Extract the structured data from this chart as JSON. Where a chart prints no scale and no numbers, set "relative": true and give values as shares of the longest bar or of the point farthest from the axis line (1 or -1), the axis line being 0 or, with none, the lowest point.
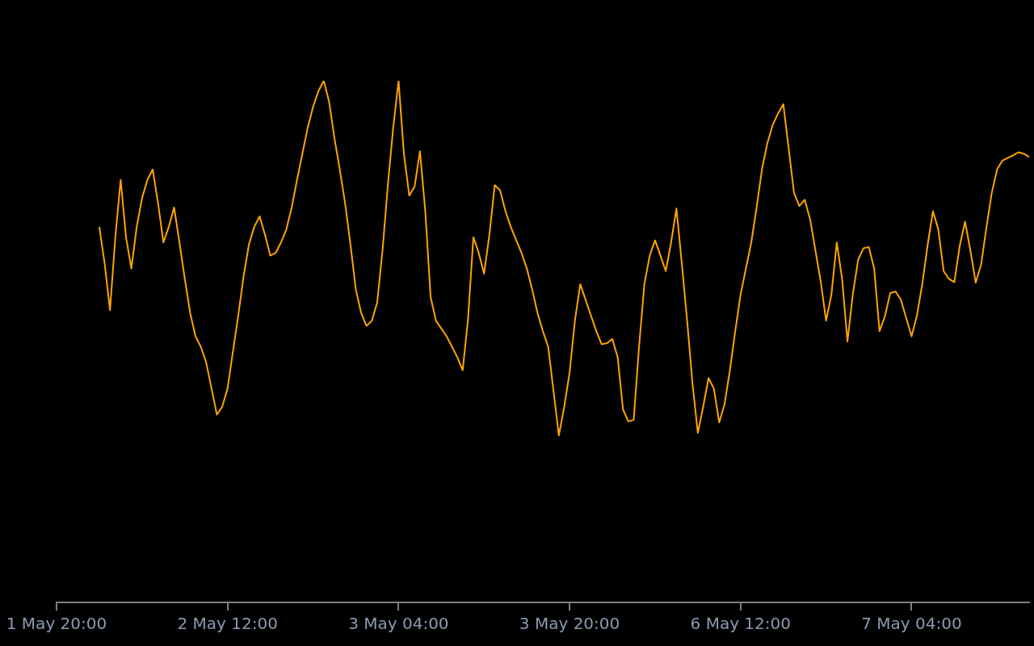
{
  "chart_data": {
    "type": "line",
    "relative": true,
    "marker": "none",
    "categories": [
      "1 May 20:00",
      null,
      null,
      null,
      null,
      null,
      null,
      null,
      null,
      null,
      null,
      null,
      null,
      null,
      null,
      null,
      null,
      null,
      null,
      null,
      null,
      null,
      null,
      null,
      null,
      null,
      null,
      null,
      null,
      null,
      null,
      null,
      "2 May 12:00",
      null,
      null,
      null,
      null,
      null,
      null,
      null,
      null,
      null,
      null,
      null,
      null,
      null,
      null,
      null,
      null,
      null,
      null,
      null,
      null,
      null,
      null,
      null,
      null,
      null,
      null,
      null,
      null,
      null,
      null,
      null,
      "3 May 04:00",
      null,
      null,
      null,
      null,
      null,
      null,
      null,
      null,
      null,
      null,
      null,
      null,
      null,
      null,
      null,
      null,
      null,
      null,
      null,
      null,
      null,
      null,
      null,
      null,
      null,
      null,
      null,
      null,
      null,
      null,
      null,
      "3 May 20:00",
      null,
      null,
      null,
      null,
      null,
      null,
      null,
      null,
      null,
      null,
      null,
      null,
      null,
      null,
      null,
      null,
      null,
      null,
      null,
      null,
      null,
      null,
      null,
      null,
      null,
      null,
      null,
      null,
      null,
      null,
      null,
      "6 May 12:00",
      null,
      null,
      null,
      null,
      null,
      null,
      null,
      null,
      null,
      null,
      null,
      null,
      null,
      null,
      null,
      null,
      null,
      null,
      null,
      null,
      null,
      null,
      null,
      null,
      null,
      null,
      null,
      null,
      null,
      null,
      null,
      "7 May 04:00",
      null,
      null,
      null,
      null,
      null,
      null,
      null,
      null,
      null,
      null,
      null,
      null,
      null,
      null,
      null,
      null,
      null,
      null,
      null,
      null,
      null,
      null
    ],
    "series": [
      {
        "color": "#ffa500",
        "values": [
          null,
          null,
          null,
          null,
          null,
          null,
          null,
          null,
          0.72,
          0.65,
          0.56,
          0.7,
          0.81,
          0.7,
          0.64,
          0.72,
          0.775,
          0.81,
          0.83,
          0.765,
          0.69,
          0.72,
          0.757,
          0.69,
          0.62,
          0.555,
          0.51,
          0.49,
          0.46,
          0.41,
          0.36,
          0.375,
          0.41,
          0.48,
          0.55,
          0.625,
          0.686,
          0.72,
          0.74,
          0.705,
          0.665,
          0.67,
          0.69,
          0.715,
          0.757,
          0.81,
          0.86,
          0.91,
          0.95,
          0.98,
          1,
          0.96,
          0.89,
          0.83,
          0.765,
          0.686,
          0.6,
          0.555,
          0.53,
          0.54,
          0.575,
          0.675,
          0.8,
          0.91,
          1,
          0.86,
          0.78,
          0.797,
          0.865,
          0.75,
          0.585,
          0.54,
          0.525,
          0.51,
          0.49,
          0.47,
          0.445,
          0.543,
          0.7,
          0.67,
          0.63,
          0.705,
          0.8,
          0.79,
          0.75,
          0.72,
          0.695,
          0.67,
          0.64,
          0.6,
          0.555,
          0.52,
          0.49,
          0.405,
          0.32,
          0.375,
          0.44,
          0.54,
          0.61,
          0.58,
          0.55,
          0.52,
          0.495,
          0.497,
          0.505,
          0.47,
          0.37,
          0.347,
          0.35,
          0.49,
          0.61,
          0.665,
          0.694,
          0.665,
          0.635,
          0.69,
          0.755,
          0.65,
          0.54,
          0.42,
          0.325,
          0.375,
          0.43,
          0.41,
          0.345,
          0.38,
          0.445,
          0.52,
          0.59,
          0.64,
          0.69,
          0.757,
          0.83,
          0.88,
          0.915,
          0.937,
          0.955,
          0.87,
          0.785,
          0.76,
          0.772,
          0.735,
          0.675,
          0.615,
          0.54,
          0.59,
          0.69,
          0.62,
          0.5,
          0.59,
          0.657,
          0.679,
          0.681,
          0.64,
          0.52,
          0.548,
          0.593,
          0.596,
          0.58,
          0.545,
          0.51,
          0.55,
          0.61,
          0.685,
          0.75,
          0.715,
          0.635,
          0.62,
          0.614,
          0.683,
          0.73,
          0.675,
          0.613,
          0.647,
          0.718,
          0.785,
          0.83,
          0.847,
          0.852,
          0.857,
          0.863,
          0.86,
          0.854
        ]
      }
    ]
  }
}
